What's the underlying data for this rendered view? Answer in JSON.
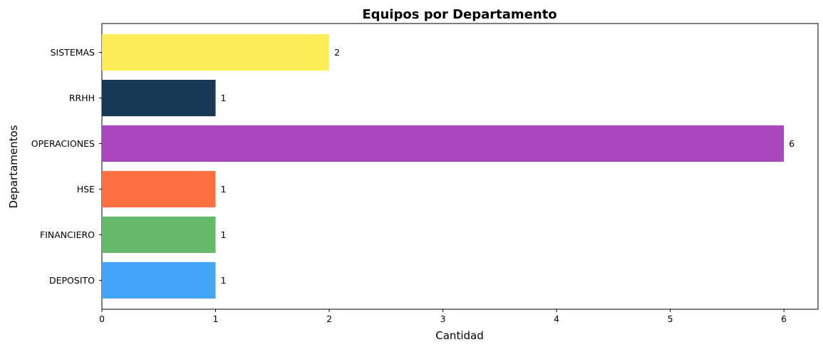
{
  "chart_data": {
    "type": "bar",
    "orientation": "horizontal",
    "title": "Equipos por Departamento",
    "xlabel": "Cantidad",
    "ylabel": "Departamentos",
    "categories": [
      "DEPOSITO",
      "FINANCIERO",
      "HSE",
      "OPERACIONES",
      "RRHH",
      "SISTEMAS"
    ],
    "values": [
      1,
      1,
      1,
      6,
      1,
      2
    ],
    "data_labels": [
      "1",
      "1",
      "1",
      "6",
      "1",
      "2"
    ],
    "colors": [
      "#42a5f5",
      "#66bb6a",
      "#ff7043",
      "#ab47bc",
      "#163755",
      "#ffee58"
    ],
    "xlim": [
      0,
      6.3
    ],
    "xticks": [
      0,
      1,
      2,
      3,
      4,
      5,
      6
    ],
    "xtick_labels": [
      "0",
      "1",
      "2",
      "3",
      "4",
      "5",
      "6"
    ],
    "grid": false,
    "legend": "none"
  }
}
